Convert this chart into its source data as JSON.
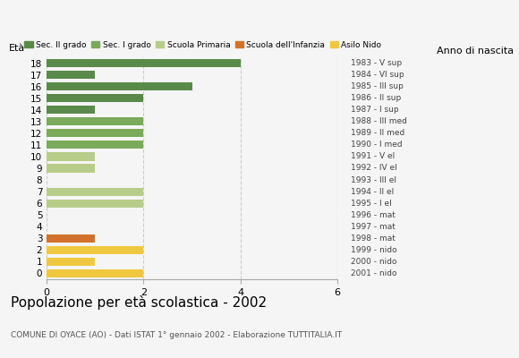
{
  "ages": [
    18,
    17,
    16,
    15,
    14,
    13,
    12,
    11,
    10,
    9,
    8,
    7,
    6,
    5,
    4,
    3,
    2,
    1,
    0
  ],
  "right_labels": [
    "1983 - V sup",
    "1984 - VI sup",
    "1985 - III sup",
    "1986 - II sup",
    "1987 - I sup",
    "1988 - III med",
    "1989 - II med",
    "1990 - I med",
    "1991 - V el",
    "1992 - IV el",
    "1993 - III el",
    "1994 - II el",
    "1995 - I el",
    "1996 - mat",
    "1997 - mat",
    "1998 - mat",
    "1999 - nido",
    "2000 - nido",
    "2001 - nido"
  ],
  "values": [
    4,
    1,
    3,
    2,
    1,
    2,
    2,
    2,
    1,
    1,
    0,
    2,
    2,
    0,
    0,
    1,
    2,
    1,
    2
  ],
  "colors": [
    "#5a8a4a",
    "#5a8a4a",
    "#5a8a4a",
    "#5a8a4a",
    "#5a8a4a",
    "#7aaa5a",
    "#7aaa5a",
    "#7aaa5a",
    "#b8cc8a",
    "#b8cc8a",
    "#b8cc8a",
    "#b8cc8a",
    "#b8cc8a",
    "#c8a84a",
    "#c8a84a",
    "#c8a84a",
    "#f0c840",
    "#f0c840",
    "#f0c840"
  ],
  "legend_labels": [
    "Sec. II grado",
    "Sec. I grado",
    "Scuola Primaria",
    "Scuola dell'Infanzia",
    "Asilo Nido"
  ],
  "legend_colors": [
    "#5a8a4a",
    "#7aaa5a",
    "#b8cc8a",
    "#d2722a",
    "#f0c840"
  ],
  "title": "Popolazione per età scolastica - 2002",
  "subtitle": "COMUNE DI OYACE (AO) - Dati ISTAT 1° gennaio 2002 - Elaborazione TUTTITALIA.IT",
  "label_left": "Età",
  "label_right": "Anno di nascita",
  "xlim": [
    0,
    6
  ],
  "xticks": [
    0,
    2,
    4,
    6
  ],
  "bar_height": 0.7,
  "bg_color": "#f5f5f5",
  "infanzia_color": "#d2722a",
  "grid_color": "#cccccc",
  "spine_color": "#aaaaaa"
}
